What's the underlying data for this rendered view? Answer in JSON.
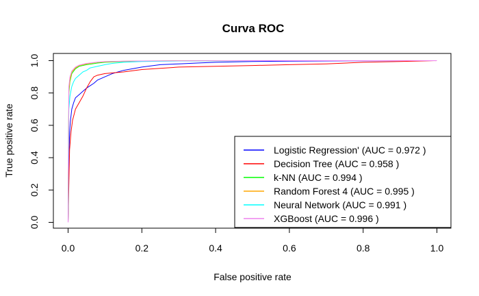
{
  "chart_data": {
    "type": "line",
    "title": "Curva ROC",
    "xlabel": "False positive rate",
    "ylabel": "True positive rate",
    "xlim": [
      0,
      1
    ],
    "ylim": [
      0,
      1
    ],
    "xticks": [
      "0.0",
      "0.2",
      "0.4",
      "0.6",
      "0.8",
      "1.0"
    ],
    "yticks": [
      "0.0",
      "0.2",
      "0.4",
      "0.6",
      "0.8",
      "1.0"
    ],
    "grid": false,
    "legend_position": "bottom-right",
    "series": [
      {
        "name": "Logistic Regression' (AUC = 0.972 )",
        "color": "#0000ff",
        "x": [
          0,
          0.002,
          0.004,
          0.006,
          0.01,
          0.015,
          0.02,
          0.03,
          0.04,
          0.05,
          0.06,
          0.07,
          0.08,
          0.1,
          0.12,
          0.15,
          0.2,
          0.25,
          0.3,
          0.35,
          0.4,
          0.5,
          0.6,
          0.8,
          1.0
        ],
        "y": [
          0,
          0.4,
          0.55,
          0.62,
          0.7,
          0.74,
          0.77,
          0.79,
          0.81,
          0.83,
          0.845,
          0.86,
          0.88,
          0.9,
          0.92,
          0.94,
          0.96,
          0.975,
          0.98,
          0.985,
          0.99,
          0.995,
          0.997,
          0.999,
          1.0
        ]
      },
      {
        "name": "Decision Tree (AUC = 0.958 )",
        "color": "#ff0000",
        "x": [
          0,
          0.004,
          0.008,
          0.012,
          0.02,
          0.03,
          0.04,
          0.05,
          0.06,
          0.07,
          0.08,
          0.1,
          0.15,
          0.2,
          0.3,
          0.4,
          0.5,
          0.6,
          0.7,
          0.8,
          0.9,
          1.0
        ],
        "y": [
          0,
          0.45,
          0.56,
          0.63,
          0.7,
          0.74,
          0.78,
          0.83,
          0.87,
          0.9,
          0.91,
          0.92,
          0.93,
          0.945,
          0.96,
          0.965,
          0.97,
          0.975,
          0.98,
          0.99,
          0.995,
          1.0
        ]
      },
      {
        "name": "k-NN (AUC = 0.994 )",
        "color": "#00ff00",
        "x": [
          0,
          0.002,
          0.005,
          0.01,
          0.02,
          0.03,
          0.05,
          0.08,
          0.1,
          0.15,
          0.2,
          0.3,
          0.5,
          0.7,
          1.0
        ],
        "y": [
          0,
          0.8,
          0.87,
          0.92,
          0.95,
          0.965,
          0.975,
          0.985,
          0.99,
          0.995,
          0.997,
          0.999,
          1.0,
          1.0,
          1.0
        ]
      },
      {
        "name": "Random Forest 4 (AUC = 0.995 )",
        "color": "#ffa500",
        "x": [
          0,
          0.002,
          0.005,
          0.01,
          0.02,
          0.03,
          0.05,
          0.08,
          0.1,
          0.15,
          0.2,
          0.3,
          0.5,
          0.7,
          1.0
        ],
        "y": [
          0,
          0.82,
          0.88,
          0.93,
          0.955,
          0.97,
          0.98,
          0.99,
          0.993,
          0.996,
          0.998,
          0.999,
          1.0,
          1.0,
          1.0
        ]
      },
      {
        "name": "Neural Network (AUC = 0.991 )",
        "color": "#00ffff",
        "x": [
          0,
          0.002,
          0.005,
          0.01,
          0.015,
          0.02,
          0.03,
          0.04,
          0.05,
          0.06,
          0.08,
          0.1,
          0.12,
          0.15,
          0.2,
          0.3,
          0.4,
          0.5,
          1.0
        ],
        "y": [
          0,
          0.7,
          0.78,
          0.84,
          0.87,
          0.89,
          0.91,
          0.93,
          0.94,
          0.955,
          0.965,
          0.975,
          0.983,
          0.99,
          0.995,
          0.998,
          0.999,
          1.0,
          1.0
        ]
      },
      {
        "name": "XGBoost (AUC = 0.996 )",
        "color": "#ee82ee",
        "x": [
          0,
          0.002,
          0.005,
          0.01,
          0.02,
          0.03,
          0.05,
          0.08,
          0.1,
          0.15,
          0.2,
          0.3,
          0.5,
          0.7,
          1.0
        ],
        "y": [
          0,
          0.84,
          0.9,
          0.935,
          0.96,
          0.972,
          0.983,
          0.991,
          0.994,
          0.997,
          0.998,
          0.999,
          1.0,
          1.0,
          1.0
        ]
      }
    ]
  }
}
